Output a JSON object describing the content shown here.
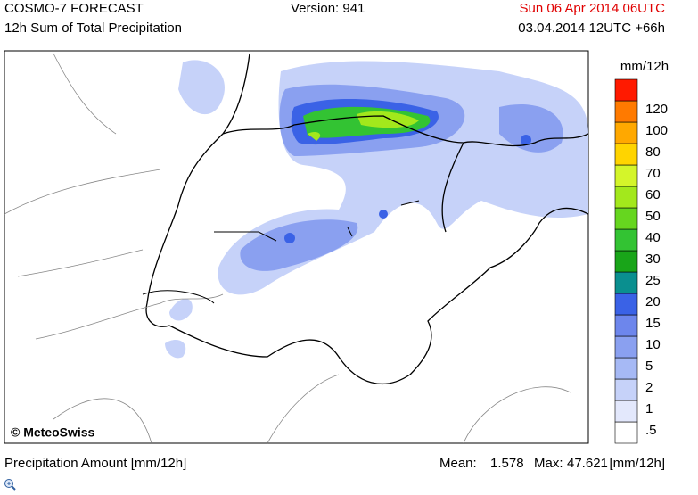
{
  "header": {
    "model": "COSMO-7 FORECAST",
    "version": "Version: 941",
    "valid": "Sun 06 Apr 2014 06UTC",
    "product": "12h Sum of Total Precipitation",
    "run": "03.04.2014 12UTC +66h"
  },
  "map": {
    "credit": "© MeteoSwiss"
  },
  "legend": {
    "unit": "mm/12h",
    "labels": [
      ".5",
      "1",
      "2",
      "5",
      "10",
      "15",
      "20",
      "25",
      "30",
      "40",
      "50",
      "60",
      "70",
      "80",
      "100",
      "120"
    ],
    "colors": [
      "#ffffff",
      "#e3e8fc",
      "#c6d2f9",
      "#a6b9f5",
      "#8aa0f0",
      "#6d86ec",
      "#3a62e6",
      "#0a8f8f",
      "#19a519",
      "#33c333",
      "#66d61f",
      "#a3e81c",
      "#d4f52a",
      "#ffd400",
      "#ffa800",
      "#ff7a00",
      "#ff1a00"
    ]
  },
  "footer": {
    "label": "Precipitation Amount [mm/12h]",
    "mean_label": "Mean:",
    "mean": "1.578",
    "max_label": "Max:",
    "max": "47.621",
    "unit": "[mm/12h]"
  }
}
